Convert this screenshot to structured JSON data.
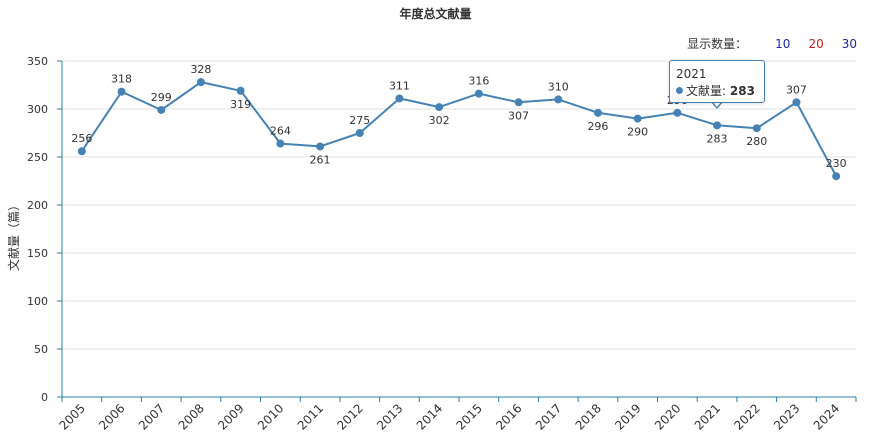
{
  "chart_data": {
    "type": "line",
    "title": "年度总文献量",
    "xlabel": "",
    "ylabel": "文献量（篇）",
    "ylim": [
      0,
      350
    ],
    "yticks": [
      0,
      50,
      100,
      150,
      200,
      250,
      300,
      350
    ],
    "grid": true,
    "categories": [
      "2005",
      "2006",
      "2007",
      "2008",
      "2009",
      "2010",
      "2011",
      "2012",
      "2013",
      "2014",
      "2015",
      "2016",
      "2017",
      "2018",
      "2019",
      "2020",
      "2021",
      "2022",
      "2023",
      "2024"
    ],
    "series": [
      {
        "name": "文献量",
        "color": "#4682b4",
        "values": [
          256,
          318,
          299,
          328,
          319,
          264,
          261,
          275,
          311,
          302,
          316,
          307,
          310,
          296,
          290,
          296,
          283,
          280,
          307,
          230
        ]
      }
    ]
  },
  "count_selector": {
    "label": "显示数量：",
    "options": [
      {
        "label": "10",
        "color": "#1f1fcc"
      },
      {
        "label": "20",
        "color": "#cc1f1f"
      },
      {
        "label": "30",
        "color": "#1f1f99"
      }
    ]
  },
  "tooltip": {
    "year": "2021",
    "series_label": "文献量:",
    "value": "283"
  }
}
